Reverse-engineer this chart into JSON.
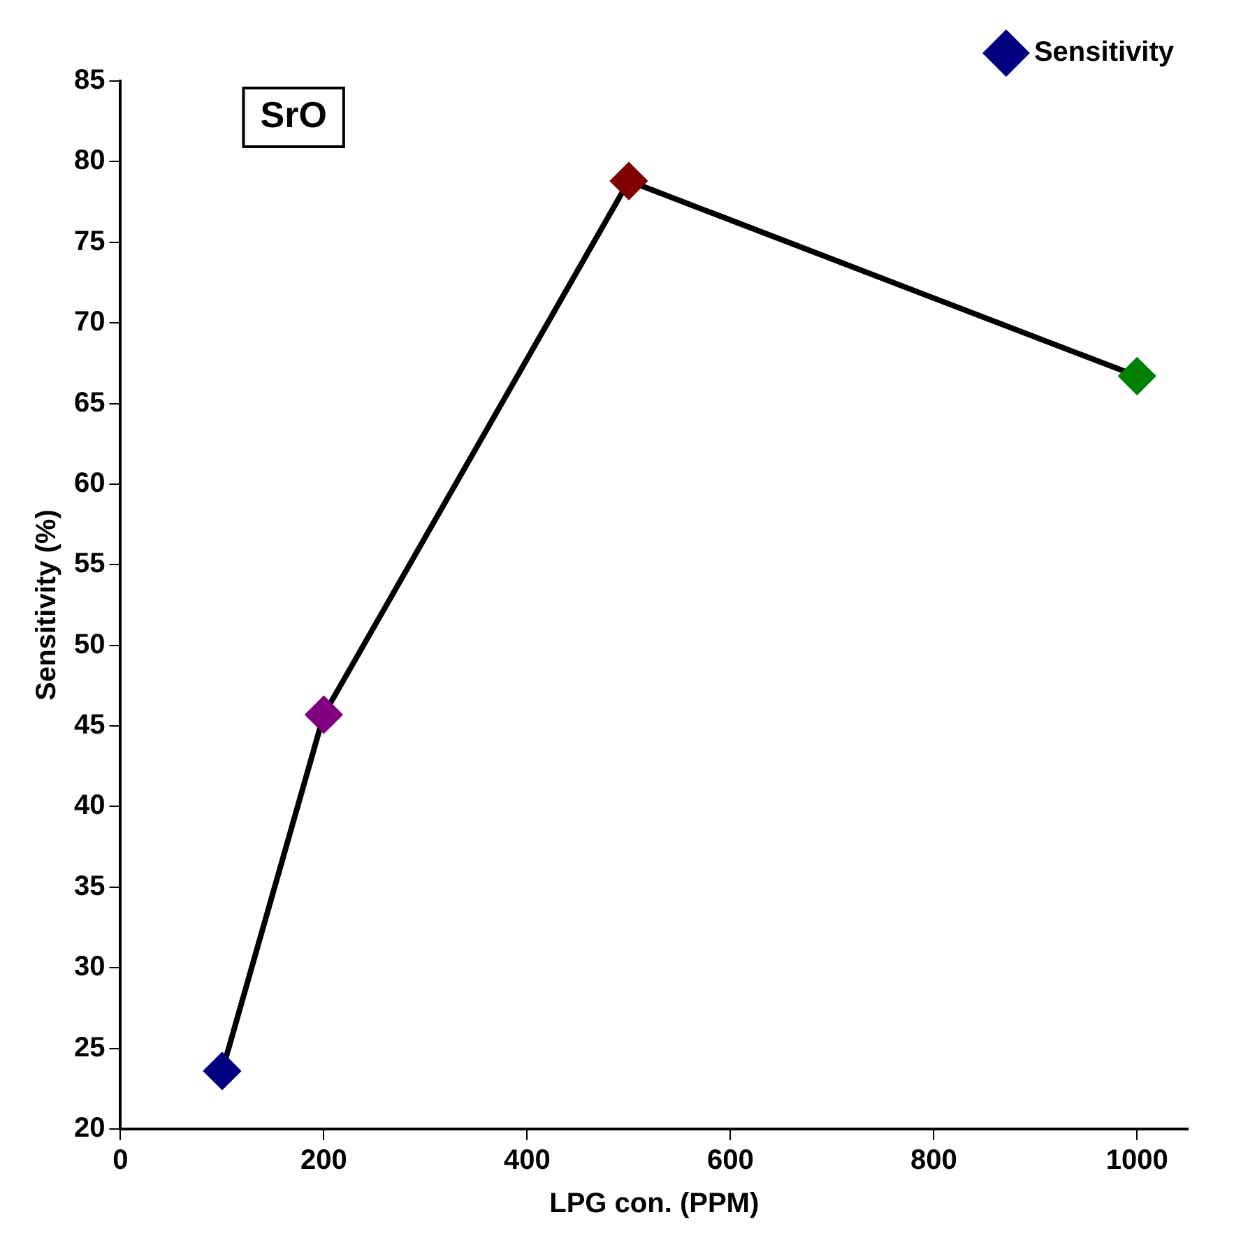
{
  "chart_data": {
    "type": "line",
    "xlabel": "LPG con. (PPM)",
    "ylabel": "Sensitivity (%)",
    "x": [
      100,
      200,
      500,
      1000
    ],
    "series": [
      {
        "name": "Sensitivity",
        "color": "#000000",
        "colors": [
          "#000080",
          "#800080",
          "#800000",
          "#008000"
        ],
        "values": [
          23.6,
          45.7,
          78.8,
          66.7
        ]
      }
    ],
    "xlim": [
      0,
      1050
    ],
    "xticks": [
      0,
      200,
      400,
      600,
      800,
      1000
    ],
    "ylim": [
      20,
      85
    ],
    "yticks": [
      20,
      25,
      30,
      35,
      40,
      45,
      50,
      55,
      60,
      65,
      70,
      75,
      80,
      85
    ],
    "annotations": [
      "SrO"
    ],
    "legend": "top right",
    "grid": false,
    "marker": "diamond",
    "line_style": "solid"
  }
}
